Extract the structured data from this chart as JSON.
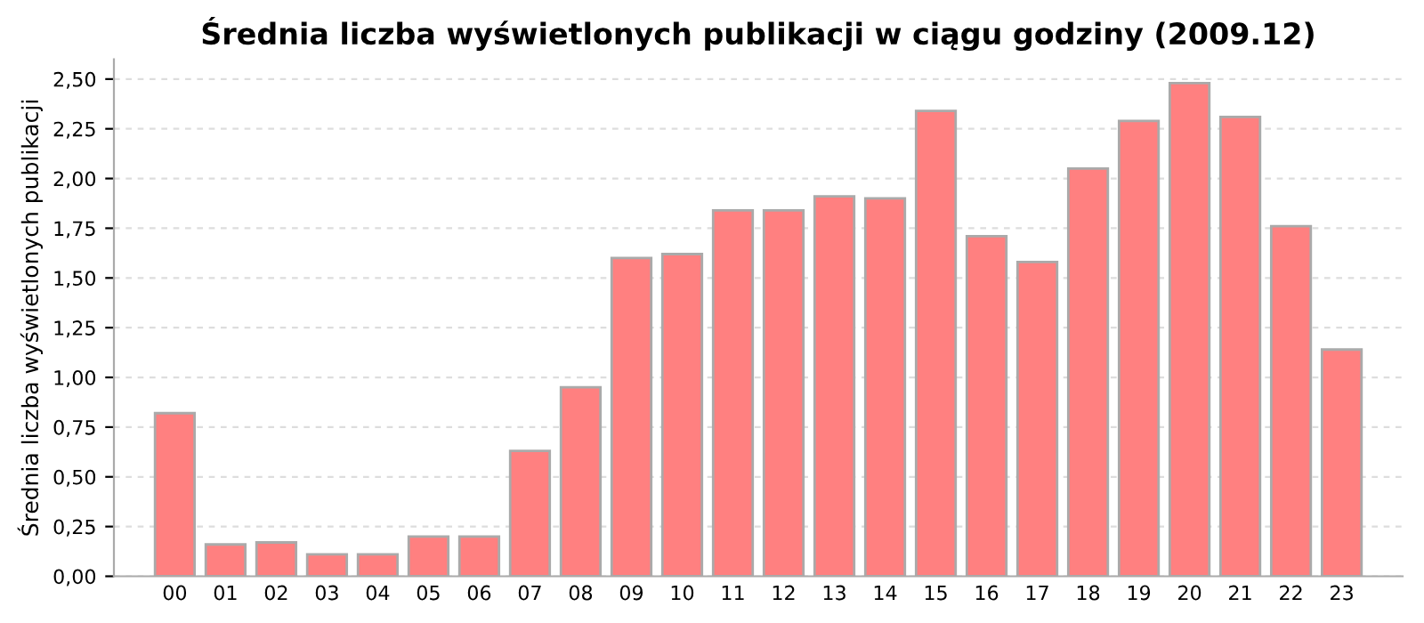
{
  "chart_data": {
    "type": "bar",
    "title": "Średnia liczba wyświetlonych publikacji w ciągu godziny (2009.12)",
    "ylabel": "Średnia liczba wyświetlonych publikacji",
    "categories": [
      "00",
      "01",
      "02",
      "03",
      "04",
      "05",
      "06",
      "07",
      "08",
      "09",
      "10",
      "11",
      "12",
      "13",
      "14",
      "15",
      "16",
      "17",
      "18",
      "19",
      "20",
      "21",
      "22",
      "23"
    ],
    "values": [
      0.82,
      0.16,
      0.17,
      0.11,
      0.11,
      0.2,
      0.2,
      0.63,
      0.95,
      1.6,
      1.62,
      1.84,
      1.84,
      1.91,
      1.9,
      2.34,
      1.71,
      1.58,
      2.05,
      2.29,
      2.48,
      2.31,
      1.76,
      1.14
    ],
    "color": "#ff8080",
    "ylim": [
      0,
      2.6
    ],
    "yticks": [
      {
        "value": 0,
        "label": "0,00"
      },
      {
        "value": 0.25,
        "label": "0,25"
      },
      {
        "value": 0.5,
        "label": "0,50"
      },
      {
        "value": 0.75,
        "label": "0,75"
      },
      {
        "value": 1,
        "label": "1,00"
      },
      {
        "value": 1.25,
        "label": "1,25"
      },
      {
        "value": 1.5,
        "label": "1,50"
      },
      {
        "value": 1.75,
        "label": "1,75"
      },
      {
        "value": 2,
        "label": "2,00"
      },
      {
        "value": 2.25,
        "label": "2,25"
      },
      {
        "value": 2.5,
        "label": "2,50"
      }
    ],
    "grid": "y"
  }
}
